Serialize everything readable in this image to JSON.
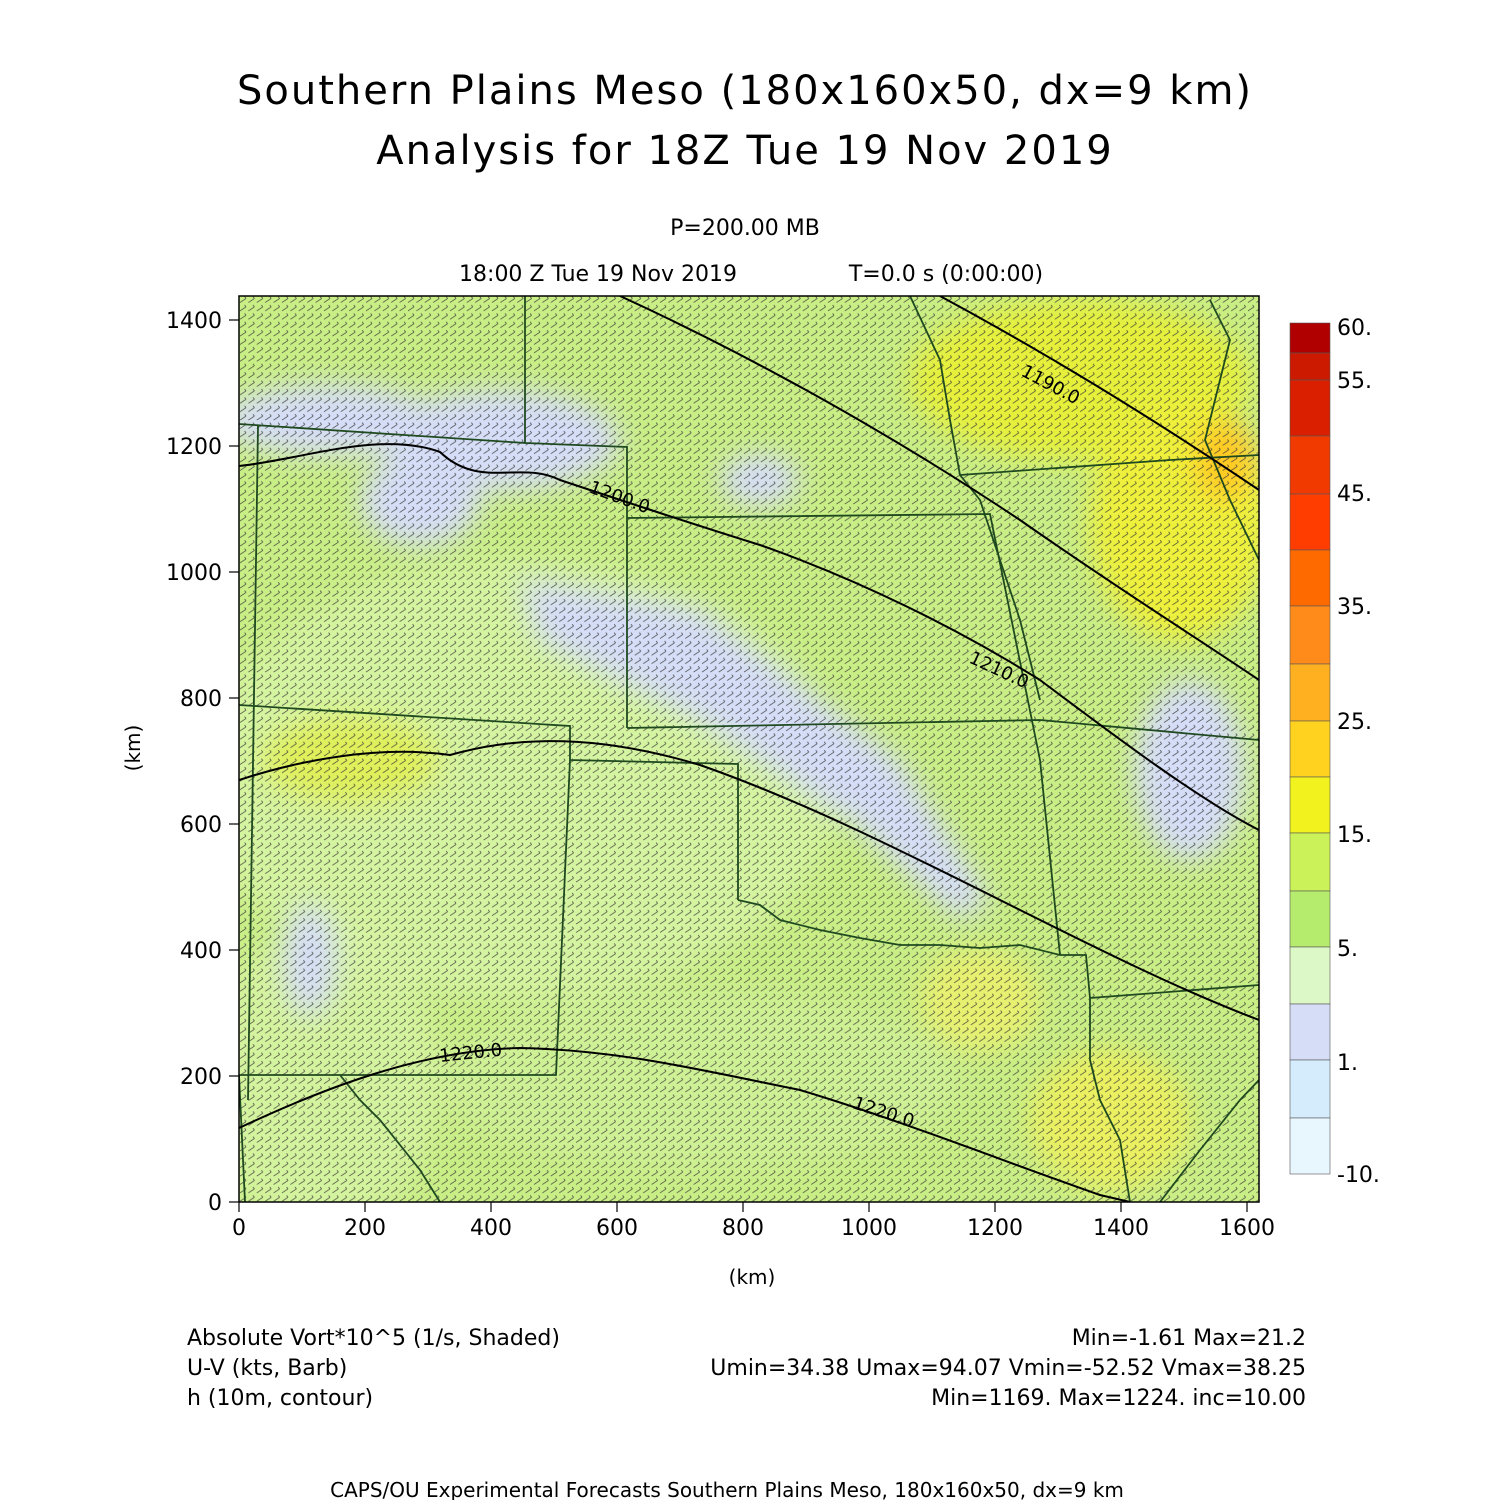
{
  "title": {
    "line1": "Southern Plains Meso (180x160x50, dx=9 km)",
    "line2": "Analysis for 18Z Tue 19 Nov 2019"
  },
  "subtitle": {
    "pressure": "P=200.00 MB",
    "time": "18:00 Z Tue 19 Nov 2019",
    "elapsed": "T=0.0 s (0:00:00)"
  },
  "axes": {
    "x_label": "(km)",
    "y_label": "(km)",
    "x_range": [
      0,
      1620
    ],
    "y_range": [
      0,
      1440
    ],
    "x_ticks": [
      "0",
      "200",
      "400",
      "600",
      "800",
      "1000",
      "1200",
      "1400",
      "1600"
    ],
    "y_ticks": [
      "0",
      "200",
      "400",
      "600",
      "800",
      "1000",
      "1200",
      "1400"
    ]
  },
  "colorbar": {
    "labels": [
      "60.",
      "55.",
      "45.",
      "35.",
      "25.",
      "15.",
      "5.",
      "1.",
      "-10."
    ],
    "colors": [
      "#b00000",
      "#cc1a00",
      "#e63300",
      "#ff3d00",
      "#ff6a00",
      "#ff8c1a",
      "#ffb020",
      "#ffd21f",
      "#f2f21f",
      "#ccf25a",
      "#b5ec6e",
      "#ccf79a",
      "#ddf8c7",
      "#d5ddf7",
      "#d5ecfd",
      "#e8f7fe"
    ]
  },
  "contours": [
    {
      "label": "1190.0"
    },
    {
      "label": "1200.0"
    },
    {
      "label": "1210.0"
    },
    {
      "label": "1220.0"
    },
    {
      "label": "1220.0"
    }
  ],
  "legend": {
    "vort_label": "Absolute Vort*10^5 (1/s, Shaded)",
    "vort_stats": "Min=-1.61 Max=21.2",
    "wind_label": "U-V (kts, Barb)",
    "wind_stats": "Umin=34.38 Umax=94.07 Vmin=-52.52 Vmax=38.25",
    "height_label": "h (10m, contour)",
    "height_stats": "Min=1169. Max=1224. inc=10.00"
  },
  "footer": "CAPS/OU Experimental Forecasts Southern Plains Meso, 180x160x50, dx=9 km",
  "colors": {
    "base_fill": "#c9ee86",
    "light_green": "#d8f5a8",
    "blue_patch": "#d5ddf7",
    "yellow_patch": "#eeee30",
    "orange_patch": "#ffc820",
    "border": "#1f4a1f",
    "barb": "#333333"
  }
}
